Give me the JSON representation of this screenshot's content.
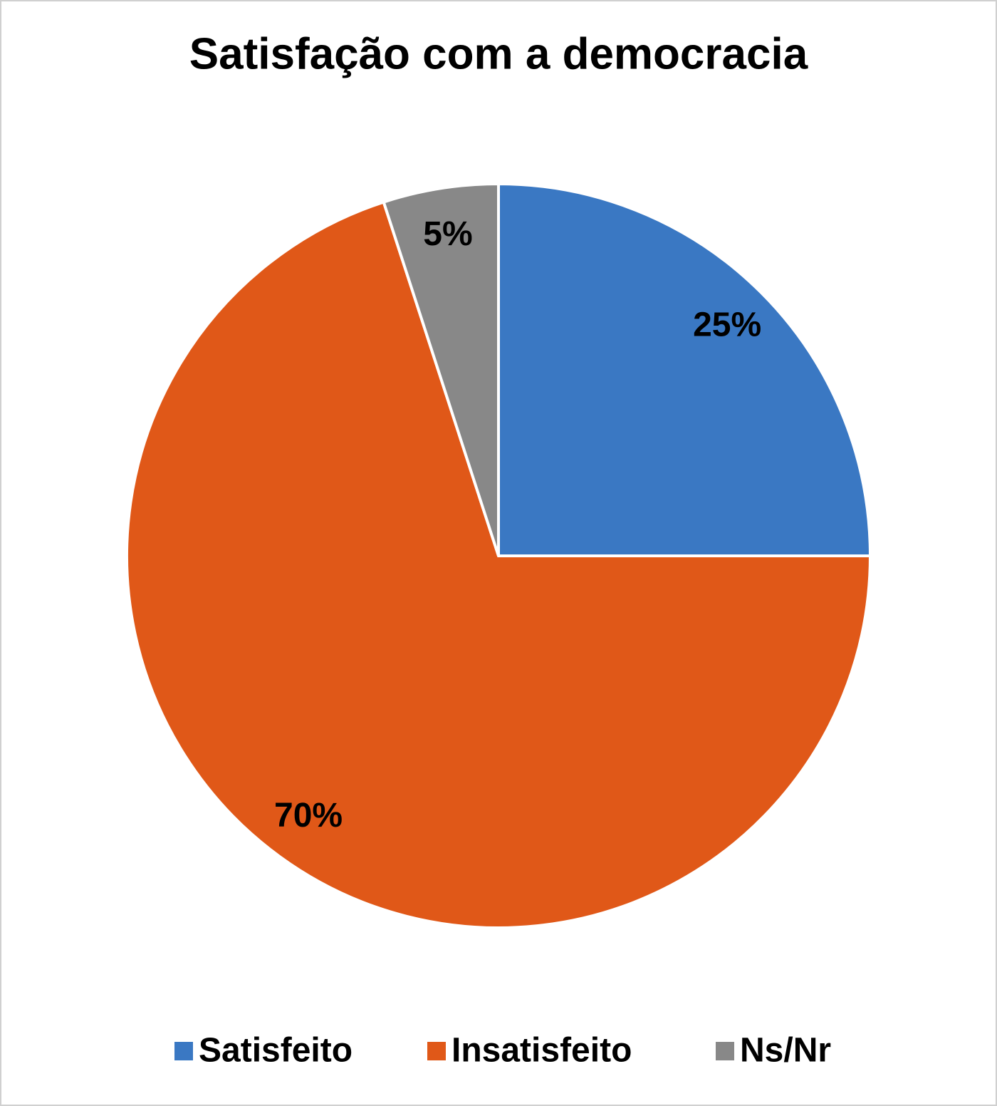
{
  "chart_data": {
    "type": "pie",
    "title": "Satisfação com a democracia",
    "categories": [
      "Satisfeito",
      "Insatisfeito",
      "Ns/Nr"
    ],
    "values": [
      25,
      70,
      5
    ],
    "value_labels": [
      "25%",
      "70%",
      "5%"
    ],
    "colors": [
      "#3a78c3",
      "#e05818",
      "#888888"
    ],
    "legend": "bottom"
  }
}
